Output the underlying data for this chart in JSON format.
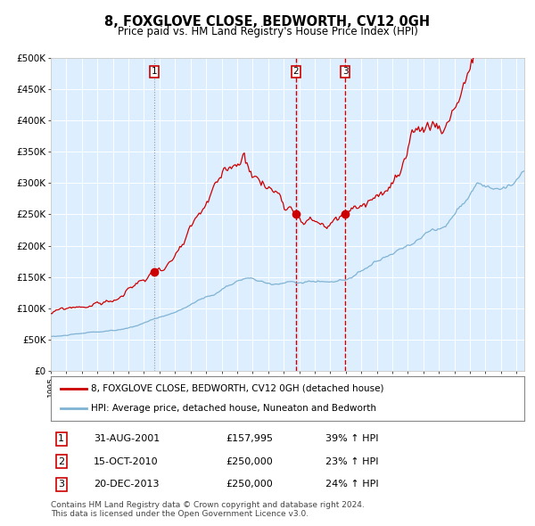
{
  "title": "8, FOXGLOVE CLOSE, BEDWORTH, CV12 0GH",
  "subtitle": "Price paid vs. HM Land Registry's House Price Index (HPI)",
  "ylabel_ticks": [
    "£0",
    "£50K",
    "£100K",
    "£150K",
    "£200K",
    "£250K",
    "£300K",
    "£350K",
    "£400K",
    "£450K",
    "£500K"
  ],
  "ylim": [
    0,
    500000
  ],
  "legend_line1": "8, FOXGLOVE CLOSE, BEDWORTH, CV12 0GH (detached house)",
  "legend_line2": "HPI: Average price, detached house, Nuneaton and Bedworth",
  "transactions": [
    {
      "num": 1,
      "date": "31-AUG-2001",
      "price": 157995,
      "pct": "39%",
      "dir": "↑",
      "year": 2001.66
    },
    {
      "num": 2,
      "date": "15-OCT-2010",
      "price": 250000,
      "pct": "23%",
      "dir": "↑",
      "year": 2010.79
    },
    {
      "num": 3,
      "date": "20-DEC-2013",
      "price": 250000,
      "pct": "24%",
      "dir": "↑",
      "year": 2013.96
    }
  ],
  "footnote": "Contains HM Land Registry data © Crown copyright and database right 2024.\nThis data is licensed under the Open Government Licence v3.0.",
  "line_color_red": "#cc0000",
  "line_color_blue": "#7fb3d3",
  "background_color": "#ddeeff",
  "plot_bg": "#ddeeff",
  "grid_color": "#ffffff",
  "vline1_color": "#999999",
  "vline23_color": "#cc0000",
  "marker_color": "#cc0000",
  "box_edge_color": "#cc0000",
  "start_year": 1995.0,
  "end_year": 2025.5
}
